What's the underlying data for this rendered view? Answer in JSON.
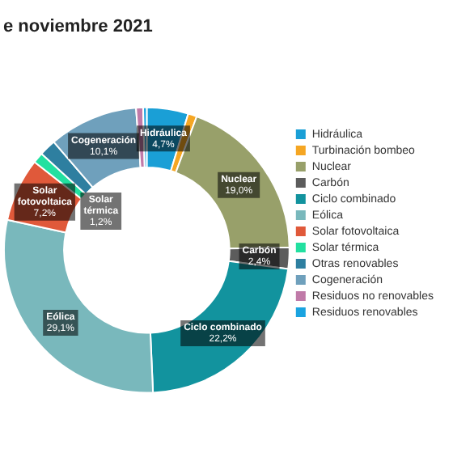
{
  "chart_data": {
    "type": "donut",
    "title": "e noviembre 2021",
    "categories": [
      "Hidráulica",
      "Turbinación bombeo",
      "Nuclear",
      "Carbón",
      "Ciclo combinado",
      "Eólica",
      "Solar fotovoltaica",
      "Solar térmica",
      "Otras renovables",
      "Cogeneración",
      "Residuos no renovables",
      "Residuos renovables"
    ],
    "values": [
      4.7,
      1.0,
      19.0,
      2.4,
      22.2,
      29.1,
      7.2,
      1.2,
      1.9,
      10.1,
      0.8,
      0.4
    ],
    "value_labels": [
      "4,7%",
      null,
      "19,0%",
      "2,4%",
      "22,2%",
      "29,1%",
      "7,2%",
      "1,2%",
      null,
      "10,1%",
      null,
      null
    ],
    "colors": [
      "#1a9fd6",
      "#f5a623",
      "#98a06a",
      "#5c5c5c",
      "#12939e",
      "#79b8bc",
      "#e0593a",
      "#22e0a0",
      "#2e7fa0",
      "#6fa0bc",
      "#c07aa8",
      "#1aa3e0"
    ],
    "legend": "right"
  }
}
